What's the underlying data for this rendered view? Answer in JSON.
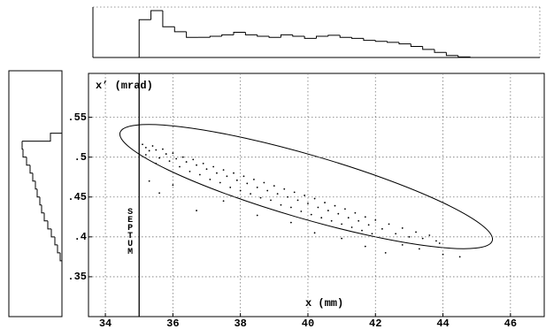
{
  "chart_data": [
    {
      "type": "scatter",
      "y_label": "x’ (mrad)",
      "x_label": "x (mm)",
      "septum": {
        "label": "SEPTUM",
        "x": 35
      },
      "xlim": [
        33.5,
        47
      ],
      "xticks": [
        34,
        36,
        38,
        40,
        42,
        44,
        46
      ],
      "ylim": [
        0.3,
        0.605
      ],
      "yticks": [
        {
          "value": 0.35,
          "label": ".35"
        },
        {
          "value": 0.4,
          "label": ".4"
        },
        {
          "value": 0.45,
          "label": ".45"
        },
        {
          "value": 0.5,
          "label": ".5"
        },
        {
          "value": 0.55,
          "label": ".55"
        }
      ],
      "grid": true,
      "color": "#000000",
      "x": [
        35.1,
        35.2,
        35.3,
        35.2,
        35.4,
        35.5,
        35.6,
        35.5,
        35.7,
        35.8,
        35.9,
        36.0,
        36.1,
        36.2,
        36.3,
        36.4,
        36.5,
        36.6,
        36.7,
        36.8,
        36.9,
        37.0,
        37.1,
        37.2,
        37.3,
        37.4,
        37.5,
        37.6,
        37.7,
        37.8,
        37.9,
        38.0,
        38.1,
        38.2,
        38.3,
        38.4,
        38.5,
        38.6,
        38.7,
        38.8,
        38.9,
        39.0,
        39.1,
        39.2,
        39.3,
        39.4,
        39.5,
        39.6,
        39.7,
        39.8,
        39.9,
        40.0,
        40.1,
        40.2,
        40.3,
        40.4,
        40.5,
        40.6,
        40.7,
        40.8,
        40.9,
        41.0,
        41.1,
        41.2,
        41.3,
        41.4,
        41.5,
        41.6,
        41.7,
        41.8,
        41.9,
        42.0,
        42.2,
        42.4,
        42.6,
        42.8,
        43.0,
        43.2,
        43.4,
        43.6,
        43.8,
        35.3,
        35.6,
        36.0,
        36.7,
        37.5,
        38.5,
        39.5,
        40.2,
        41.0,
        41.7,
        42.3,
        42.8,
        43.3,
        44.0,
        44.5,
        43.9
      ],
      "values": [
        0.516,
        0.512,
        0.508,
        0.503,
        0.514,
        0.509,
        0.499,
        0.492,
        0.51,
        0.504,
        0.495,
        0.505,
        0.498,
        0.488,
        0.5,
        0.494,
        0.482,
        0.497,
        0.49,
        0.478,
        0.492,
        0.485,
        0.472,
        0.488,
        0.48,
        0.468,
        0.484,
        0.476,
        0.462,
        0.48,
        0.471,
        0.458,
        0.476,
        0.467,
        0.454,
        0.472,
        0.462,
        0.449,
        0.468,
        0.458,
        0.446,
        0.464,
        0.454,
        0.44,
        0.46,
        0.45,
        0.437,
        0.456,
        0.446,
        0.432,
        0.452,
        0.442,
        0.428,
        0.448,
        0.437,
        0.424,
        0.443,
        0.433,
        0.42,
        0.439,
        0.429,
        0.416,
        0.435,
        0.424,
        0.412,
        0.43,
        0.42,
        0.408,
        0.425,
        0.415,
        0.404,
        0.421,
        0.41,
        0.416,
        0.404,
        0.411,
        0.4,
        0.406,
        0.398,
        0.402,
        0.395,
        0.47,
        0.455,
        0.465,
        0.433,
        0.445,
        0.427,
        0.418,
        0.405,
        0.398,
        0.388,
        0.38,
        0.39,
        0.385,
        0.378,
        0.375,
        0.392
      ]
    },
    {
      "type": "histogram",
      "orientation": "vertical",
      "xlim": [
        33.5,
        47
      ],
      "ylim": [
        0,
        100
      ],
      "bins": [
        35,
        35.35,
        35.7,
        36.05,
        36.4,
        36.75,
        37.1,
        37.45,
        37.8,
        38.15,
        38.5,
        38.85,
        39.2,
        39.55,
        39.9,
        40.25,
        40.6,
        40.95,
        41.3,
        41.65,
        42.0,
        42.35,
        42.7,
        43.05,
        43.4,
        43.75,
        44.1,
        44.45,
        44.8
      ],
      "counts": [
        75,
        93,
        61,
        51,
        40,
        40,
        42,
        45,
        50,
        45,
        42,
        40,
        45,
        42,
        38,
        42,
        44,
        40,
        38,
        34,
        32,
        30,
        27,
        22,
        16,
        10,
        4,
        1
      ]
    },
    {
      "type": "histogram",
      "orientation": "horizontal",
      "ylim": [
        0.3,
        0.605
      ],
      "xlim": [
        0,
        60
      ],
      "bins": [
        0.37,
        0.38,
        0.39,
        0.4,
        0.41,
        0.42,
        0.43,
        0.44,
        0.45,
        0.46,
        0.47,
        0.48,
        0.49,
        0.5,
        0.51,
        0.52,
        0.53
      ],
      "counts": [
        2,
        5,
        8,
        12,
        16,
        20,
        23,
        25,
        28,
        30,
        33,
        36,
        40,
        44,
        45,
        13
      ]
    }
  ]
}
